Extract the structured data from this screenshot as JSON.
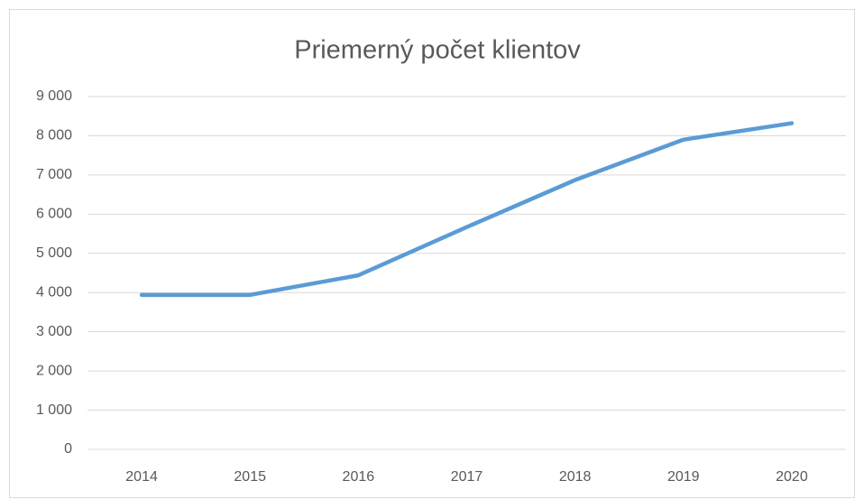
{
  "chart_data": {
    "type": "line",
    "title": "Priemerný počet klientov",
    "categories": [
      "2014",
      "2015",
      "2016",
      "2017",
      "2018",
      "2019",
      "2020"
    ],
    "series": [
      {
        "name": "Priemerný počet klientov",
        "color": "#5b9bd5",
        "values": [
          3940,
          3940,
          4440,
          5670,
          6870,
          7900,
          8320
        ]
      }
    ],
    "ylim": [
      0,
      9000
    ],
    "yticks": [
      0,
      {
        "value": 1000,
        "label": "1 000"
      },
      {
        "value": 2000,
        "label": "2 000"
      },
      {
        "value": 3000,
        "label": "3 000"
      },
      {
        "value": 4000,
        "label": "4 000"
      },
      {
        "value": 5000,
        "label": "5 000"
      },
      {
        "value": 6000,
        "label": "6 000"
      },
      {
        "value": 7000,
        "label": "7 000"
      },
      {
        "value": 8000,
        "label": "8 000"
      },
      {
        "value": 9000,
        "label": "9 000"
      }
    ],
    "grid": true
  }
}
